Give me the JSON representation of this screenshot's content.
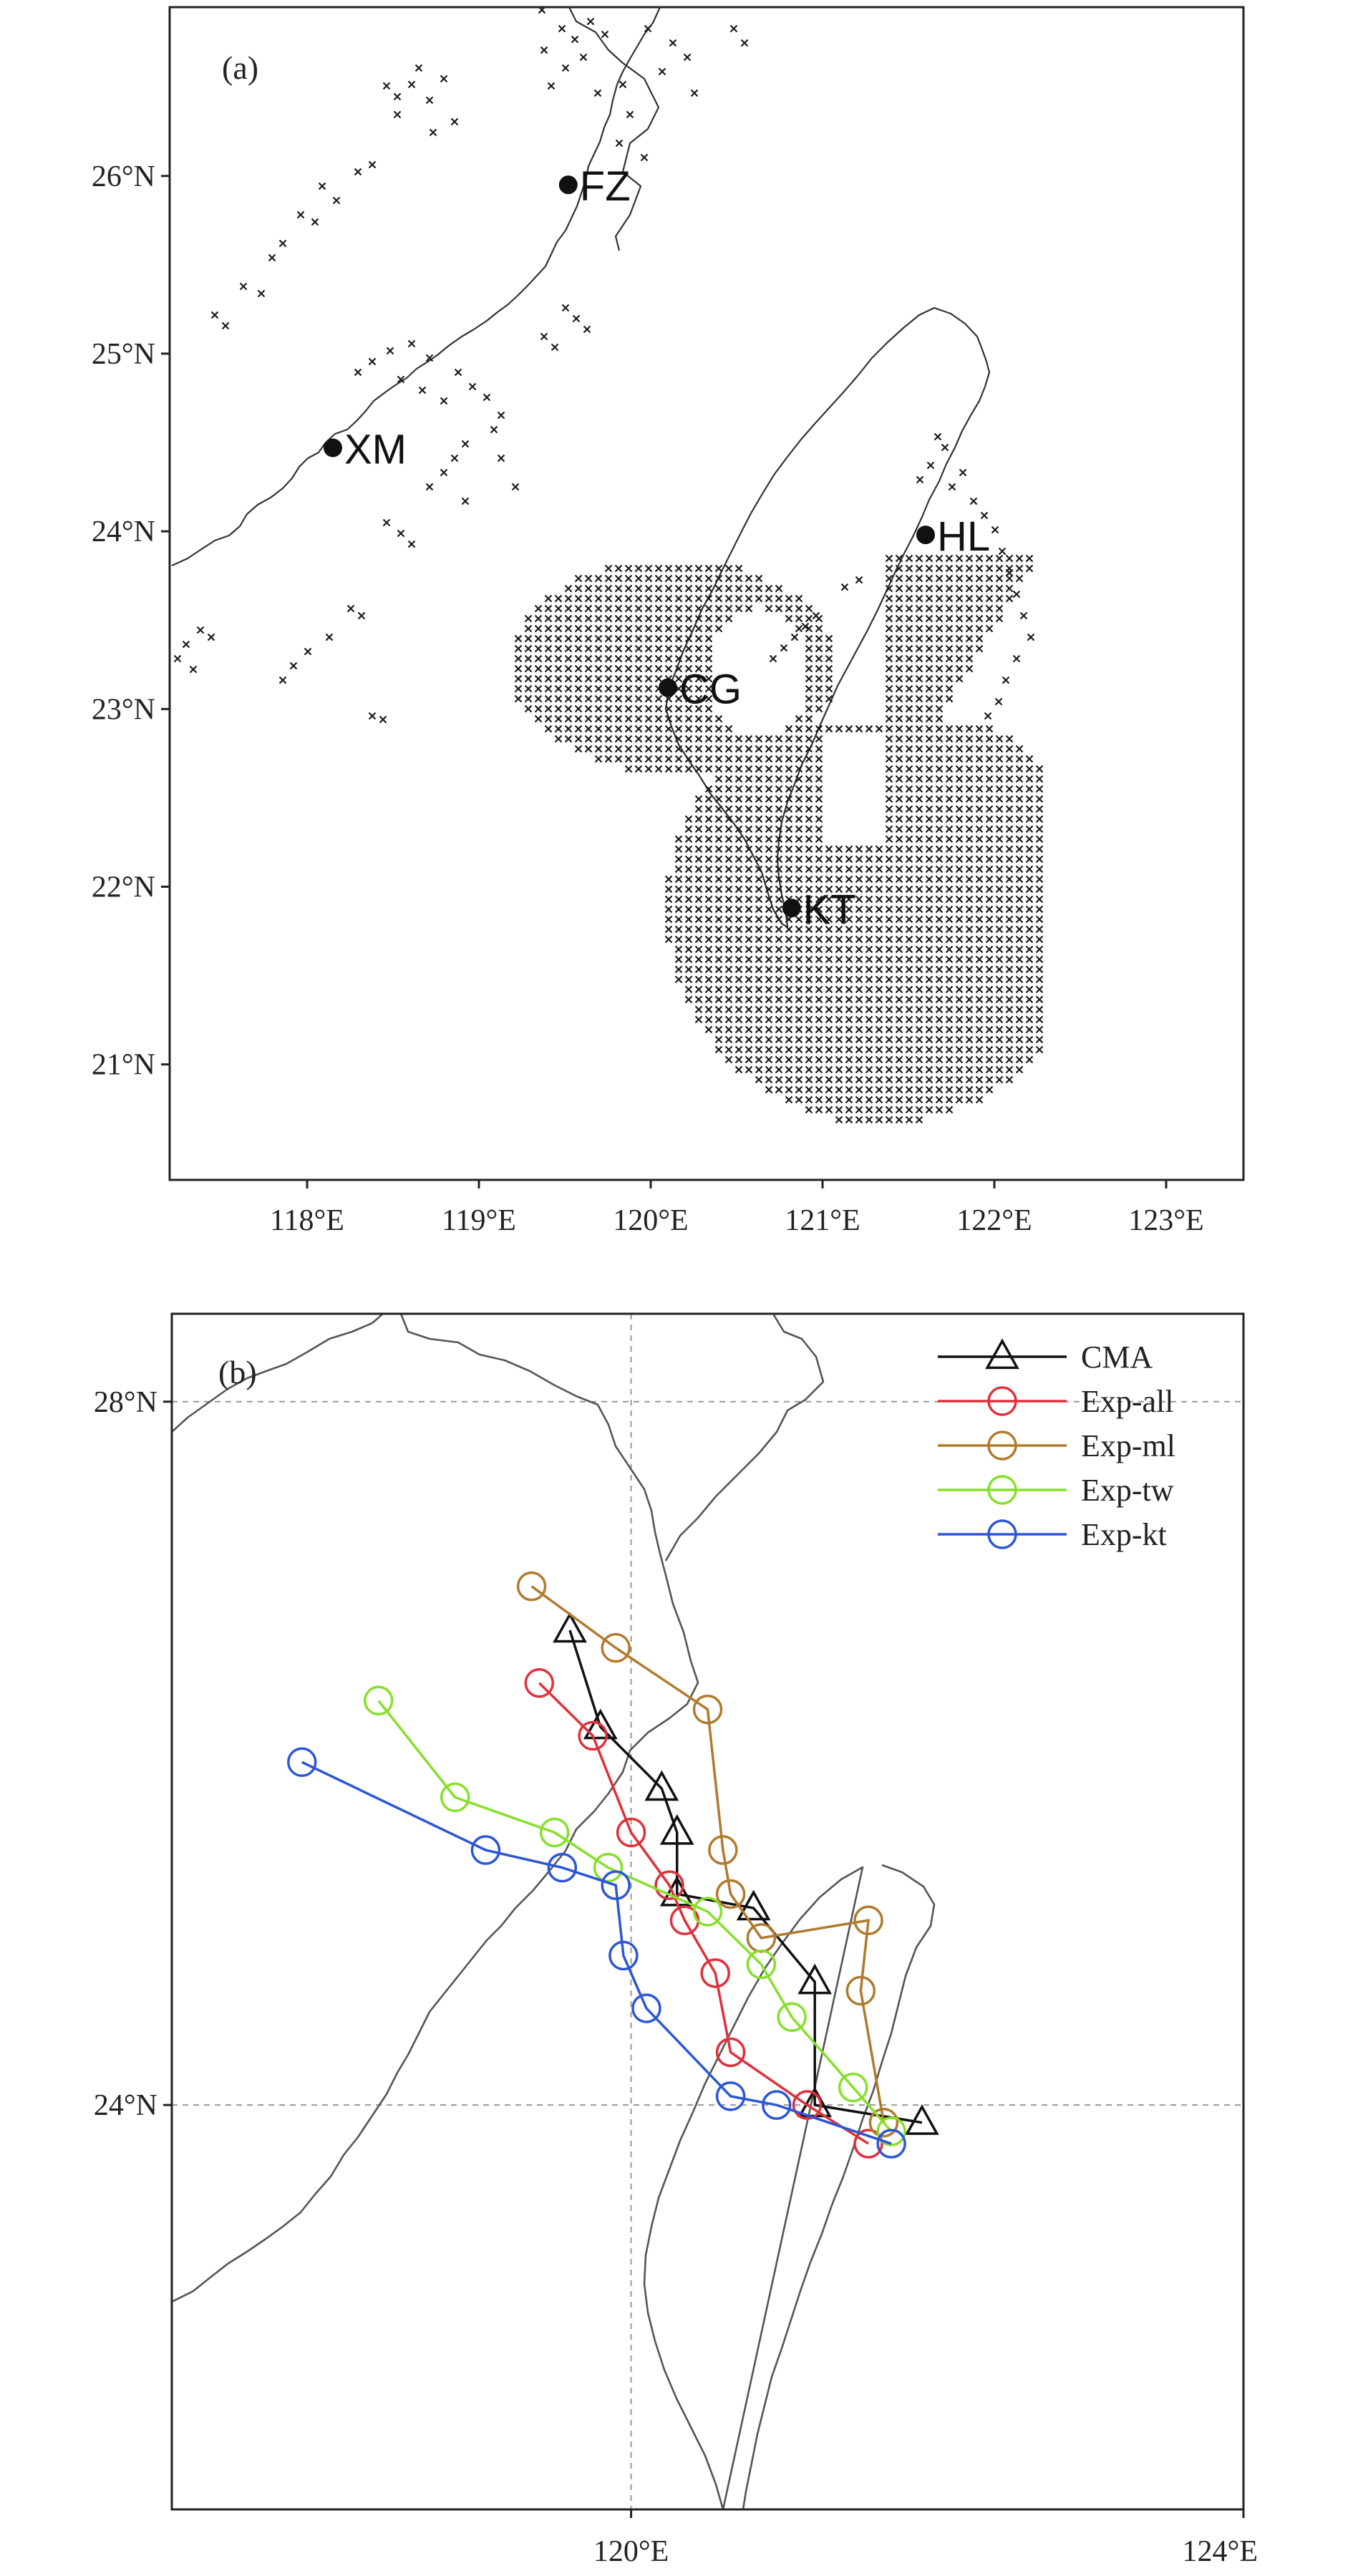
{
  "panel_a": {
    "label": "(a)",
    "lon_range": [
      117.2,
      123.45
    ],
    "lat_range": [
      20.35,
      26.95
    ],
    "x_ticks": [
      {
        "value": 118,
        "label": "118°E"
      },
      {
        "value": 119,
        "label": "119°E"
      },
      {
        "value": 120,
        "label": "120°E"
      },
      {
        "value": 121,
        "label": "121°E"
      },
      {
        "value": 122,
        "label": "122°E"
      },
      {
        "value": 123,
        "label": "123°E"
      }
    ],
    "y_ticks": [
      {
        "value": 26,
        "label": "26°N"
      },
      {
        "value": 25,
        "label": "25°N"
      },
      {
        "value": 24,
        "label": "24°N"
      },
      {
        "value": 23,
        "label": "23°N"
      },
      {
        "value": 22,
        "label": "22°N"
      },
      {
        "value": 21,
        "label": "21°N"
      }
    ],
    "stations": [
      {
        "name": "FZ",
        "lon": 119.52,
        "lat": 25.95
      },
      {
        "name": "XM",
        "lon": 118.15,
        "lat": 24.47
      },
      {
        "name": "HL",
        "lon": 121.6,
        "lat": 23.98
      },
      {
        "name": "CG",
        "lon": 120.1,
        "lat": 23.12
      },
      {
        "name": "KT",
        "lon": 120.82,
        "lat": 21.88
      }
    ],
    "marker_color": "#1a1a1a"
  },
  "panel_b": {
    "label": "(b)",
    "lon_range": [
      117.0,
      124.0
    ],
    "lat_range": [
      21.7,
      28.5
    ],
    "x_ticks": [
      {
        "value": 120,
        "label": "120°E"
      },
      {
        "value": 124,
        "label": "124°E"
      }
    ],
    "y_ticks": [
      {
        "value": 28,
        "label": "28°N"
      },
      {
        "value": 24,
        "label": "24°N"
      }
    ],
    "gridlines": {
      "lon": [
        120
      ],
      "lat": [
        28,
        24
      ]
    },
    "tracks": [
      {
        "name": "CMA",
        "color": "#111111",
        "marker": "triangle",
        "points": [
          [
            119.6,
            26.7
          ],
          [
            119.8,
            26.15
          ],
          [
            120.2,
            25.8
          ],
          [
            120.3,
            25.55
          ],
          [
            120.3,
            25.2
          ],
          [
            120.8,
            25.12
          ],
          [
            121.2,
            24.7
          ],
          [
            121.2,
            24.0
          ],
          [
            121.9,
            23.9
          ]
        ]
      },
      {
        "name": "Exp-all",
        "color": "#e0303a",
        "marker": "circle",
        "points": [
          [
            119.4,
            26.4
          ],
          [
            119.75,
            26.1
          ],
          [
            120.0,
            25.55
          ],
          [
            120.25,
            25.25
          ],
          [
            120.35,
            25.05
          ],
          [
            120.55,
            24.75
          ],
          [
            120.65,
            24.3
          ],
          [
            121.15,
            24.0
          ],
          [
            121.55,
            23.78
          ]
        ]
      },
      {
        "name": "Exp-ml",
        "color": "#b07a2e",
        "marker": "circle",
        "points": [
          [
            119.35,
            26.95
          ],
          [
            119.9,
            26.6
          ],
          [
            120.5,
            26.25
          ],
          [
            120.6,
            25.45
          ],
          [
            120.65,
            25.2
          ],
          [
            120.85,
            24.95
          ],
          [
            121.55,
            25.05
          ],
          [
            121.5,
            24.65
          ],
          [
            121.65,
            23.9
          ]
        ]
      },
      {
        "name": "Exp-tw",
        "color": "#86e02a",
        "marker": "circle",
        "points": [
          [
            118.35,
            26.3
          ],
          [
            118.85,
            25.75
          ],
          [
            119.5,
            25.55
          ],
          [
            119.85,
            25.35
          ],
          [
            120.5,
            25.1
          ],
          [
            120.85,
            24.8
          ],
          [
            121.05,
            24.5
          ],
          [
            121.45,
            24.1
          ],
          [
            121.7,
            23.85
          ]
        ]
      },
      {
        "name": "Exp-kt",
        "color": "#2c56d6",
        "marker": "circle",
        "points": [
          [
            117.85,
            25.95
          ],
          [
            119.05,
            25.45
          ],
          [
            119.55,
            25.35
          ],
          [
            119.9,
            25.25
          ],
          [
            119.95,
            24.85
          ],
          [
            120.1,
            24.55
          ],
          [
            120.65,
            24.05
          ],
          [
            120.95,
            24.0
          ],
          [
            121.7,
            23.78
          ]
        ]
      }
    ]
  }
}
